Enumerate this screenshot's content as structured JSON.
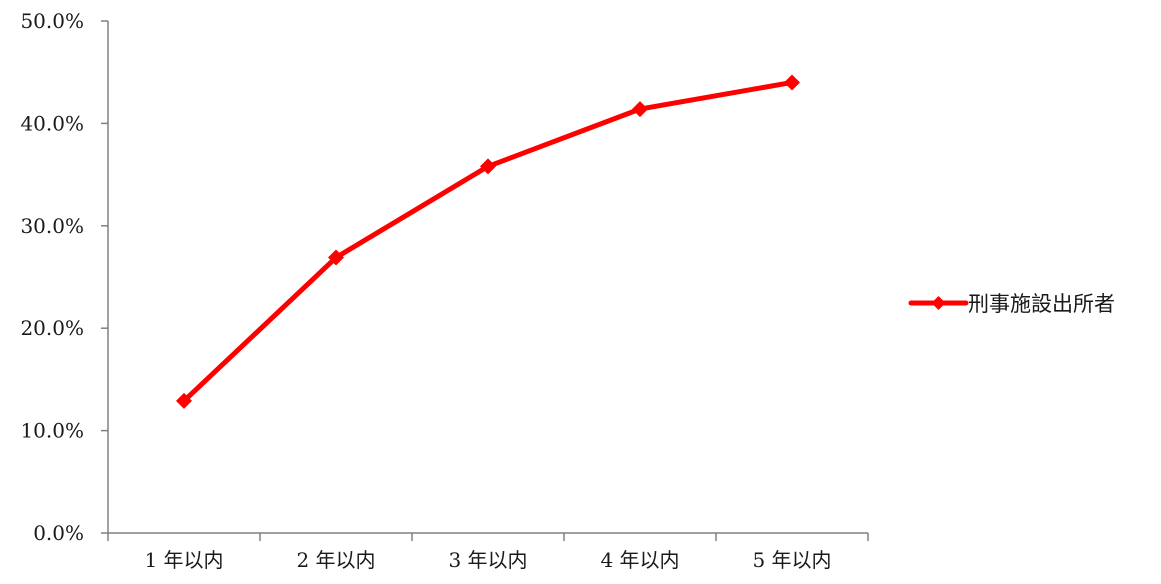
{
  "chart_data": {
    "type": "line",
    "categories": [
      "1 年以内",
      "2 年以内",
      "3 年以内",
      "4 年以内",
      "5 年以内"
    ],
    "series": [
      {
        "name": "刑事施設出所者",
        "values": [
          12.9,
          26.9,
          35.8,
          41.4,
          44.0
        ],
        "color": "#ff0000",
        "marker": "diamond"
      }
    ],
    "ylim": [
      0,
      50
    ],
    "y_ticks": [
      0,
      10,
      20,
      30,
      40,
      50
    ],
    "y_tick_labels": [
      "0.0%",
      "10.0%",
      "20.0%",
      "30.0%",
      "40.0%",
      "50.0%"
    ],
    "grid": false,
    "legend_position": "right",
    "axis_color": "#808080"
  }
}
